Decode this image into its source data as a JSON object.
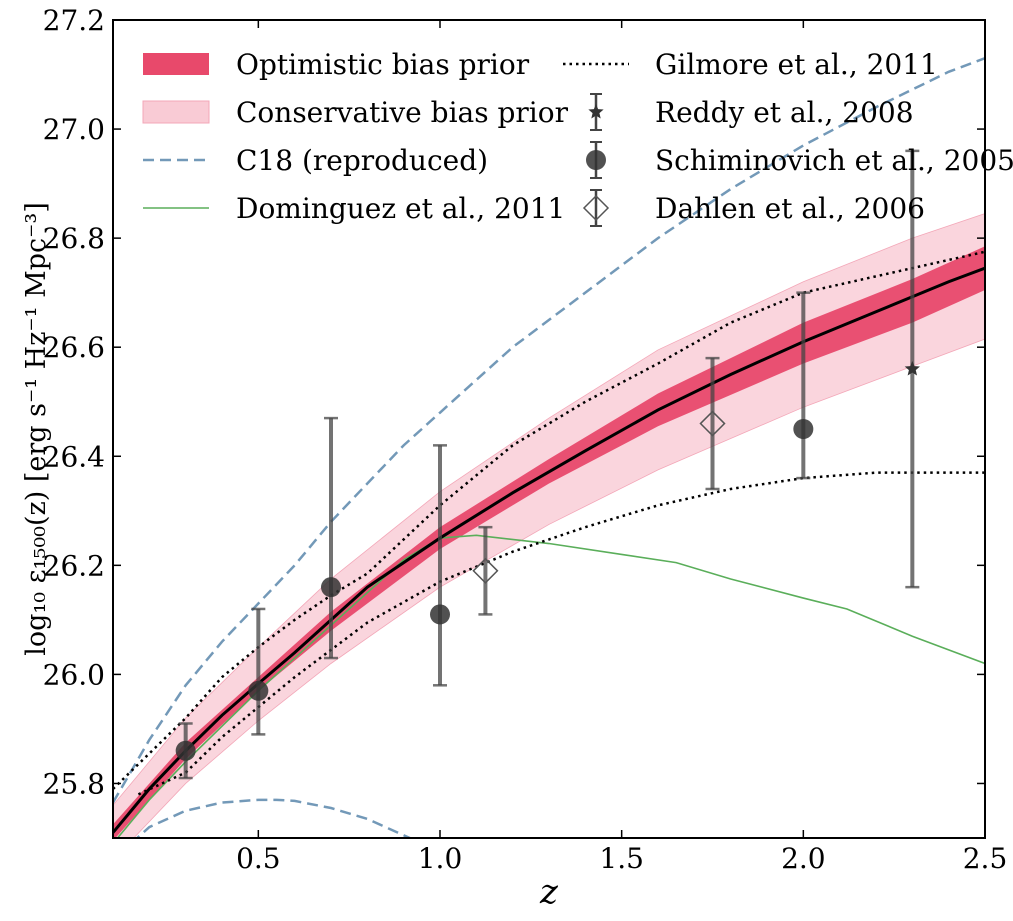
{
  "chart_data": {
    "type": "line",
    "xlabel": "z",
    "ylabel": "log₁₀ ε₁₅₀₀(z) [erg s⁻¹ Hz⁻¹ Mpc⁻³]",
    "xlim": [
      0.1,
      2.5
    ],
    "ylim": [
      25.7,
      27.2
    ],
    "xticks": [
      "0.5",
      "1.0",
      "1.5",
      "2.0",
      "2.5"
    ],
    "xtick_values": [
      0.5,
      1.0,
      1.5,
      2.0,
      2.5
    ],
    "yticks": [
      "25.8",
      "26.0",
      "26.2",
      "26.4",
      "26.6",
      "26.8",
      "27.0",
      "27.2"
    ],
    "ytick_values": [
      25.8,
      26.0,
      26.2,
      26.4,
      26.6,
      26.8,
      27.0,
      27.2
    ],
    "grid": false,
    "legend_position": "top-left",
    "colors": {
      "optimistic": "#e8496b",
      "conservative": "#f9cbd5",
      "c18": "#7399b8",
      "dominguez": "#5aae5a",
      "points": "#333333",
      "gilmore": "#000000"
    },
    "bands": [
      {
        "name": "Optimistic bias prior",
        "x": [
          0.1,
          0.3,
          0.5,
          0.7,
          1.0,
          1.3,
          1.6,
          2.0,
          2.3,
          2.5
        ],
        "lo": [
          25.695,
          25.845,
          25.97,
          26.08,
          26.23,
          26.35,
          26.455,
          26.57,
          26.645,
          26.705
        ],
        "hi": [
          25.725,
          25.875,
          25.995,
          26.115,
          26.27,
          26.395,
          26.515,
          26.645,
          26.725,
          26.785
        ]
      },
      {
        "name": "Conservative bias prior",
        "x": [
          0.1,
          0.3,
          0.5,
          0.7,
          1.0,
          1.3,
          1.6,
          2.0,
          2.3,
          2.5
        ],
        "lo": [
          25.66,
          25.8,
          25.915,
          26.02,
          26.16,
          26.275,
          26.375,
          26.49,
          26.565,
          26.615
        ],
        "hi": [
          25.76,
          25.92,
          26.05,
          26.175,
          26.335,
          26.47,
          26.595,
          26.72,
          26.8,
          26.845
        ]
      }
    ],
    "series": [
      {
        "name": "median",
        "style": "solid-black",
        "x": [
          0.1,
          0.2,
          0.3,
          0.4,
          0.5,
          0.6,
          0.7,
          0.8,
          1.0,
          1.2,
          1.4,
          1.6,
          1.8,
          2.0,
          2.2,
          2.4,
          2.5
        ],
        "y": [
          25.71,
          25.79,
          25.86,
          25.925,
          25.983,
          26.04,
          26.1,
          26.16,
          26.25,
          26.333,
          26.41,
          26.485,
          26.55,
          26.61,
          26.665,
          26.72,
          26.745
        ]
      },
      {
        "name": "C18 (reproduced)",
        "style": "dashed-blue",
        "x": [
          0.1,
          0.2,
          0.3,
          0.4,
          0.5,
          0.6,
          0.7,
          0.8,
          0.9,
          1.0,
          1.2,
          1.4,
          1.6,
          1.8,
          2.0,
          2.2,
          2.4,
          2.5
        ],
        "y": [
          25.765,
          25.88,
          25.98,
          26.06,
          26.13,
          26.2,
          26.28,
          26.35,
          26.42,
          26.48,
          26.6,
          26.7,
          26.8,
          26.89,
          26.97,
          27.04,
          27.105,
          27.13
        ]
      },
      {
        "name": "C18 (reproduced) lower branch",
        "style": "dashed-blue",
        "x": [
          0.15,
          0.2,
          0.3,
          0.4,
          0.5,
          0.55,
          0.6,
          0.7,
          0.8,
          0.9,
          0.95
        ],
        "y": [
          25.69,
          25.72,
          25.75,
          25.765,
          25.77,
          25.77,
          25.768,
          25.755,
          25.735,
          25.705,
          25.69
        ]
      },
      {
        "name": "Dominguez et al., 2011",
        "style": "solid-green",
        "x": [
          0.1,
          0.2,
          0.3,
          0.4,
          0.5,
          0.6,
          0.7,
          0.8,
          0.9,
          1.0,
          1.1,
          1.3,
          1.5,
          1.65,
          1.8,
          2.0,
          2.12,
          2.3,
          2.5
        ],
        "y": [
          25.69,
          25.77,
          25.84,
          25.905,
          25.97,
          26.03,
          26.09,
          26.15,
          26.21,
          26.25,
          26.255,
          26.24,
          26.22,
          26.205,
          26.175,
          26.14,
          26.12,
          26.07,
          26.02
        ]
      },
      {
        "name": "Gilmore et al., 2011",
        "style": "dotted-black",
        "x": [
          0.1,
          0.2,
          0.3,
          0.4,
          0.5,
          0.6,
          0.7,
          0.8,
          1.0,
          1.2,
          1.4,
          1.6,
          1.8,
          2.0,
          2.2,
          2.5
        ],
        "y": [
          25.79,
          25.855,
          25.92,
          25.995,
          26.05,
          26.1,
          26.145,
          26.185,
          26.31,
          26.42,
          26.5,
          26.57,
          26.645,
          26.7,
          26.73,
          26.775
        ]
      },
      {
        "name": "Gilmore et al., 2011 lower",
        "style": "dotted-black",
        "x": [
          0.17,
          0.3,
          0.4,
          0.5,
          0.6,
          0.7,
          0.8,
          1.0,
          1.2,
          1.4,
          1.6,
          1.8,
          2.0,
          2.2,
          2.4,
          2.5
        ],
        "y": [
          25.78,
          25.82,
          25.885,
          25.94,
          25.995,
          26.045,
          26.095,
          26.17,
          26.225,
          26.27,
          26.31,
          26.34,
          26.36,
          26.37,
          26.37,
          26.37
        ]
      }
    ],
    "points": [
      {
        "name": "Schiminovich et al., 2005",
        "marker": "circle",
        "x": 0.3,
        "y": 25.86,
        "lo": 25.81,
        "hi": 25.91
      },
      {
        "name": "Schiminovich et al., 2005",
        "marker": "circle",
        "x": 0.5,
        "y": 25.97,
        "lo": 25.89,
        "hi": 26.12
      },
      {
        "name": "Schiminovich et al., 2005",
        "marker": "circle",
        "x": 0.7,
        "y": 26.16,
        "lo": 26.03,
        "hi": 26.47
      },
      {
        "name": "Schiminovich et al., 2005",
        "marker": "circle",
        "x": 1.0,
        "y": 26.11,
        "lo": 25.98,
        "hi": 26.42
      },
      {
        "name": "Dahlen et al., 2006",
        "marker": "diamond",
        "x": 1.125,
        "y": 26.19,
        "lo": 26.11,
        "hi": 26.27
      },
      {
        "name": "Dahlen et al., 2006",
        "marker": "diamond",
        "x": 1.75,
        "y": 26.46,
        "lo": 26.34,
        "hi": 26.58
      },
      {
        "name": "Schiminovich et al., 2005",
        "marker": "circle",
        "x": 2.0,
        "y": 26.45,
        "lo": 26.36,
        "hi": 26.7
      },
      {
        "name": "Reddy et al., 2008",
        "marker": "star",
        "x": 2.3,
        "y": 26.56,
        "lo": 26.16,
        "hi": 26.96
      }
    ],
    "legend": [
      {
        "label": "Optimistic bias prior",
        "kind": "band-optimistic",
        "col": 0,
        "row": 0
      },
      {
        "label": "Conservative bias prior",
        "kind": "band-conservative",
        "col": 0,
        "row": 1
      },
      {
        "label": "C18 (reproduced)",
        "kind": "dashed-blue",
        "col": 0,
        "row": 2
      },
      {
        "label": "Dominguez et al., 2011",
        "kind": "solid-green",
        "col": 0,
        "row": 3
      },
      {
        "label": "Gilmore et al., 2011",
        "kind": "dotted-black",
        "col": 1,
        "row": 0
      },
      {
        "label": "Reddy et al., 2008",
        "kind": "star",
        "col": 1,
        "row": 1
      },
      {
        "label": "Schiminovich et al., 2005",
        "kind": "circle",
        "col": 1,
        "row": 2
      },
      {
        "label": "Dahlen et al., 2006",
        "kind": "diamond",
        "col": 1,
        "row": 3
      }
    ]
  }
}
